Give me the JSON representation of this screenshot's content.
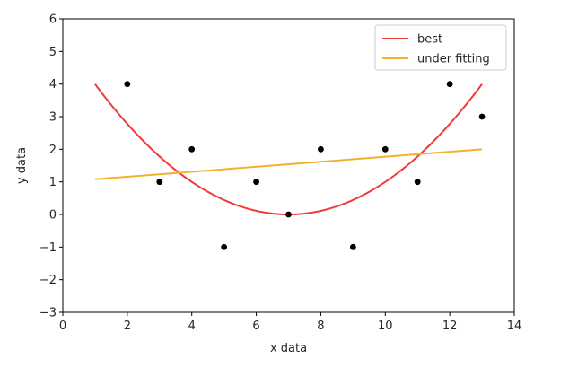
{
  "chart_data": {
    "type": "line",
    "title": "",
    "xlabel": "x data",
    "ylabel": "y data",
    "xlim": [
      0,
      14
    ],
    "ylim": [
      -3,
      6
    ],
    "x_ticks": [
      0,
      2,
      4,
      6,
      8,
      10,
      12,
      14
    ],
    "y_ticks": [
      -3,
      -2,
      -1,
      0,
      1,
      2,
      3,
      4,
      5,
      6
    ],
    "x_tick_labels": [
      "0",
      "2",
      "4",
      "6",
      "8",
      "10",
      "12",
      "14"
    ],
    "y_tick_labels": [
      "−3",
      "−2",
      "−1",
      "0",
      "1",
      "2",
      "3",
      "4",
      "5",
      "6"
    ],
    "grid": false,
    "legend_position": "top-right",
    "scatter_points": {
      "color": "#000000",
      "x": [
        2,
        3,
        4,
        5,
        6,
        7,
        8,
        9,
        10,
        11,
        12,
        13
      ],
      "y": [
        4,
        1,
        2,
        -1,
        1,
        0,
        2,
        -1,
        2,
        1,
        4,
        3
      ]
    },
    "series": [
      {
        "name": "best",
        "color": "#f03a3a",
        "curve": "quadratic",
        "x_range": [
          1,
          13
        ],
        "coefficients": {
          "a": 0.1111,
          "h": 7,
          "k": 0
        }
      },
      {
        "name": "under fitting",
        "color": "#f5b02e",
        "curve": "linear",
        "x_range": [
          1,
          13
        ],
        "y_at_start": 1.08,
        "y_at_end": 2.0
      }
    ]
  }
}
